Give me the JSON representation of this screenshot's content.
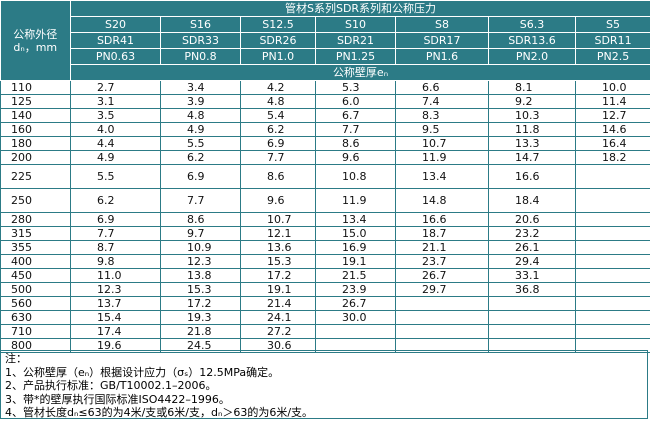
{
  "table": {
    "title": "管材S系列SDR系列和公称压力",
    "corner": [
      "公称外径",
      "dₙ，mm"
    ],
    "s_series": [
      "S20",
      "S16",
      "S12.5",
      "S10",
      "S8",
      "S6.3",
      "S5"
    ],
    "sdr": [
      "SDR41",
      "SDR33",
      "SDR26",
      "SDR21",
      "SDR17",
      "SDR13.6",
      "SDR11"
    ],
    "pn": [
      "PN0.63",
      "PN0.8",
      "PN1.0",
      "PN1.25",
      "PN1.6",
      "PN2.0",
      "PN2.5"
    ],
    "subheader": "公称壁厚eₙ",
    "rows": [
      [
        "110",
        "2.7",
        "3.4",
        "4.2",
        "5.3",
        "6.6",
        "8.1",
        "10.0"
      ],
      [
        "125",
        "3.1",
        "3.9",
        "4.8",
        "6.0",
        "7.4",
        "9.2",
        "11.4"
      ],
      [
        "140",
        "3.5",
        "4.8",
        "5.4",
        "6.7",
        "8.3",
        "10.3",
        "12.7"
      ],
      [
        "160",
        "4.0",
        "4.9",
        "6.2",
        "7.7",
        "9.5",
        "11.8",
        "14.6"
      ],
      [
        "180",
        "4.4",
        "5.5",
        "6.9",
        "8.6",
        "10.7",
        "13.3",
        "16.4"
      ],
      [
        "200",
        "4.9",
        "6.2",
        "7.7",
        "9.6",
        "11.9",
        "14.7",
        "18.2"
      ],
      [
        "225",
        "5.5",
        "6.9",
        "8.6",
        "10.8",
        "13.4",
        "16.6"
      ],
      [
        "250",
        "6.2",
        "7.7",
        "9.6",
        "11.9",
        "14.8",
        "18.4"
      ],
      [
        "280",
        "6.9",
        "8.6",
        "10.7",
        "13.4",
        "16.6",
        "20.6"
      ],
      [
        "315",
        "7.7",
        "9.7",
        "12.1",
        "15.0",
        "18.7",
        "23.2"
      ],
      [
        "355",
        "8.7",
        "10.9",
        "13.6",
        "16.9",
        "21.1",
        "26.1"
      ],
      [
        "400",
        "9.8",
        "12.3",
        "15.3",
        "19.1",
        "23.7",
        "29.4"
      ],
      [
        "450",
        "11.0",
        "13.8",
        "17.2",
        "21.5",
        "26.7",
        "33.1"
      ],
      [
        "500",
        "12.3",
        "15.3",
        "19.1",
        "23.9",
        "29.7",
        "36.8"
      ],
      [
        "560",
        "13.7",
        "17.2",
        "21.4",
        "26.7"
      ],
      [
        "630",
        "15.4",
        "19.3",
        "24.1",
        "30.0"
      ],
      [
        "710",
        "17.4",
        "21.8",
        "27.2"
      ],
      [
        "800",
        "19.6",
        "24.5",
        "30.6"
      ]
    ]
  },
  "notes": {
    "heading": "注：",
    "items": [
      "1、公称壁厚（eₙ）根据设计应力（σₛ）12.5MPa确定。",
      "2、产品执行标准：GB/T10002.1–2006。",
      "3、带*的壁厚执行国际标准ISO4422–1996。",
      "4、管材长度dₙ≤63的为4米/支或6米/支，dₙ＞63的为6米/支。"
    ]
  }
}
